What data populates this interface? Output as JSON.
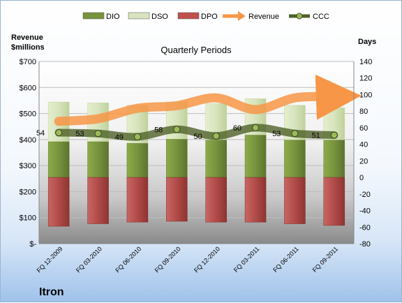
{
  "chart_data": {
    "type": "bar",
    "title": "Quarterly Periods",
    "company": "Itron",
    "left_axis_title": [
      "Revenue",
      "$millions"
    ],
    "right_axis_title": "Days",
    "left_ticks": [
      "$-",
      "$100",
      "$200",
      "$300",
      "$400",
      "$500",
      "$600",
      "$700"
    ],
    "left_ylim": [
      0,
      700
    ],
    "right_ticks": [
      "-80",
      "-60",
      "-40",
      "-20",
      "0",
      "20",
      "40",
      "60",
      "80",
      "100",
      "120",
      "140"
    ],
    "right_ylim": [
      -80,
      140
    ],
    "categories": [
      "FQ 12-2009",
      "FQ 03-2010",
      "FQ 06-2010",
      "FQ 09-2010",
      "FQ 12-2010",
      "FQ 03-2011",
      "FQ 06-2011",
      "FQ 09-2011"
    ],
    "legend_position": "top",
    "series": [
      {
        "name": "DIO",
        "kind": "stacked-bar",
        "axis": "days",
        "color": "#77933c",
        "values": [
          43,
          43,
          41,
          46,
          45,
          51,
          45,
          45
        ]
      },
      {
        "name": "DSO",
        "kind": "stacked-bar",
        "axis": "days",
        "color": "#d7e4bd",
        "values": [
          48,
          47,
          46,
          45,
          44,
          44,
          42,
          39
        ]
      },
      {
        "name": "DPO",
        "kind": "negative-bar",
        "axis": "days",
        "color": "#c0504d",
        "values": [
          -59,
          -56,
          -54,
          -53,
          -54,
          -54,
          -56,
          -58
        ]
      },
      {
        "name": "Revenue",
        "kind": "line",
        "axis": "revenue",
        "color": "#f79646",
        "values": [
          470,
          480,
          520,
          530,
          560,
          515,
          560,
          565
        ]
      },
      {
        "name": "CCC",
        "kind": "line",
        "axis": "days",
        "color": "#4f6228",
        "values": [
          54,
          53,
          49,
          58,
          50,
          60,
          53,
          51
        ],
        "labels": [
          "54",
          "53",
          "49",
          "58",
          "50",
          "60",
          "53",
          "51"
        ]
      }
    ]
  }
}
